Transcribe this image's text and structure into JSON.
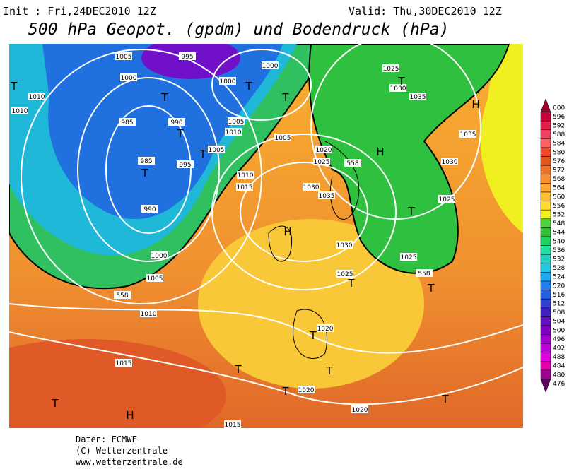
{
  "header": {
    "init": "Init : Fri,24DEC2010 12Z",
    "valid": "Valid: Thu,30DEC2010 12Z",
    "title": "500 hPa Geopot. (gpdm) und Bodendruck (hPa)"
  },
  "colorbar": {
    "levels": [
      600,
      596,
      592,
      588,
      584,
      580,
      576,
      572,
      568,
      564,
      560,
      556,
      552,
      548,
      544,
      540,
      536,
      532,
      528,
      524,
      520,
      516,
      512,
      508,
      504,
      500,
      496,
      492,
      488,
      484,
      480,
      476
    ],
    "colors": [
      "#a0002a",
      "#c8003c",
      "#e02048",
      "#f04060",
      "#ff6060",
      "#f04828",
      "#e05820",
      "#f07028",
      "#f89030",
      "#ffa838",
      "#ffc030",
      "#ffd830",
      "#f0f020",
      "#50d040",
      "#30c030",
      "#20d060",
      "#20e0a0",
      "#20d0c0",
      "#20c8e0",
      "#20a8f0",
      "#2080f0",
      "#2060e0",
      "#3040d0",
      "#4020c0",
      "#6010c0",
      "#8000c0",
      "#a000d0",
      "#c000e0",
      "#e000e0",
      "#e000b0",
      "#a00090",
      "#600060"
    ]
  },
  "isobar_labels": [
    1005,
    995,
    1000,
    1000,
    1000,
    1010,
    1010,
    985,
    990,
    1005,
    1010,
    1005,
    1005,
    995,
    985,
    990,
    1000,
    1005,
    1010,
    1015,
    1010,
    1015,
    1020,
    1025,
    1030,
    1035,
    1025,
    1030,
    1035,
    1035,
    1030,
    1025,
    1025,
    1030,
    1025,
    1020,
    1020,
    1020,
    1015,
    558,
    558,
    558
  ],
  "markers": [
    "T",
    "T",
    "T",
    "T",
    "T",
    "T",
    "T",
    "T",
    "H",
    "H",
    "T",
    "H",
    "T",
    "T",
    "T",
    "T",
    "T",
    "T",
    "H",
    "T",
    "T"
  ],
  "footer": [
    "Daten: ECMWF",
    "(C) Wetterzentrale",
    "www.wetterzentrale.de"
  ]
}
